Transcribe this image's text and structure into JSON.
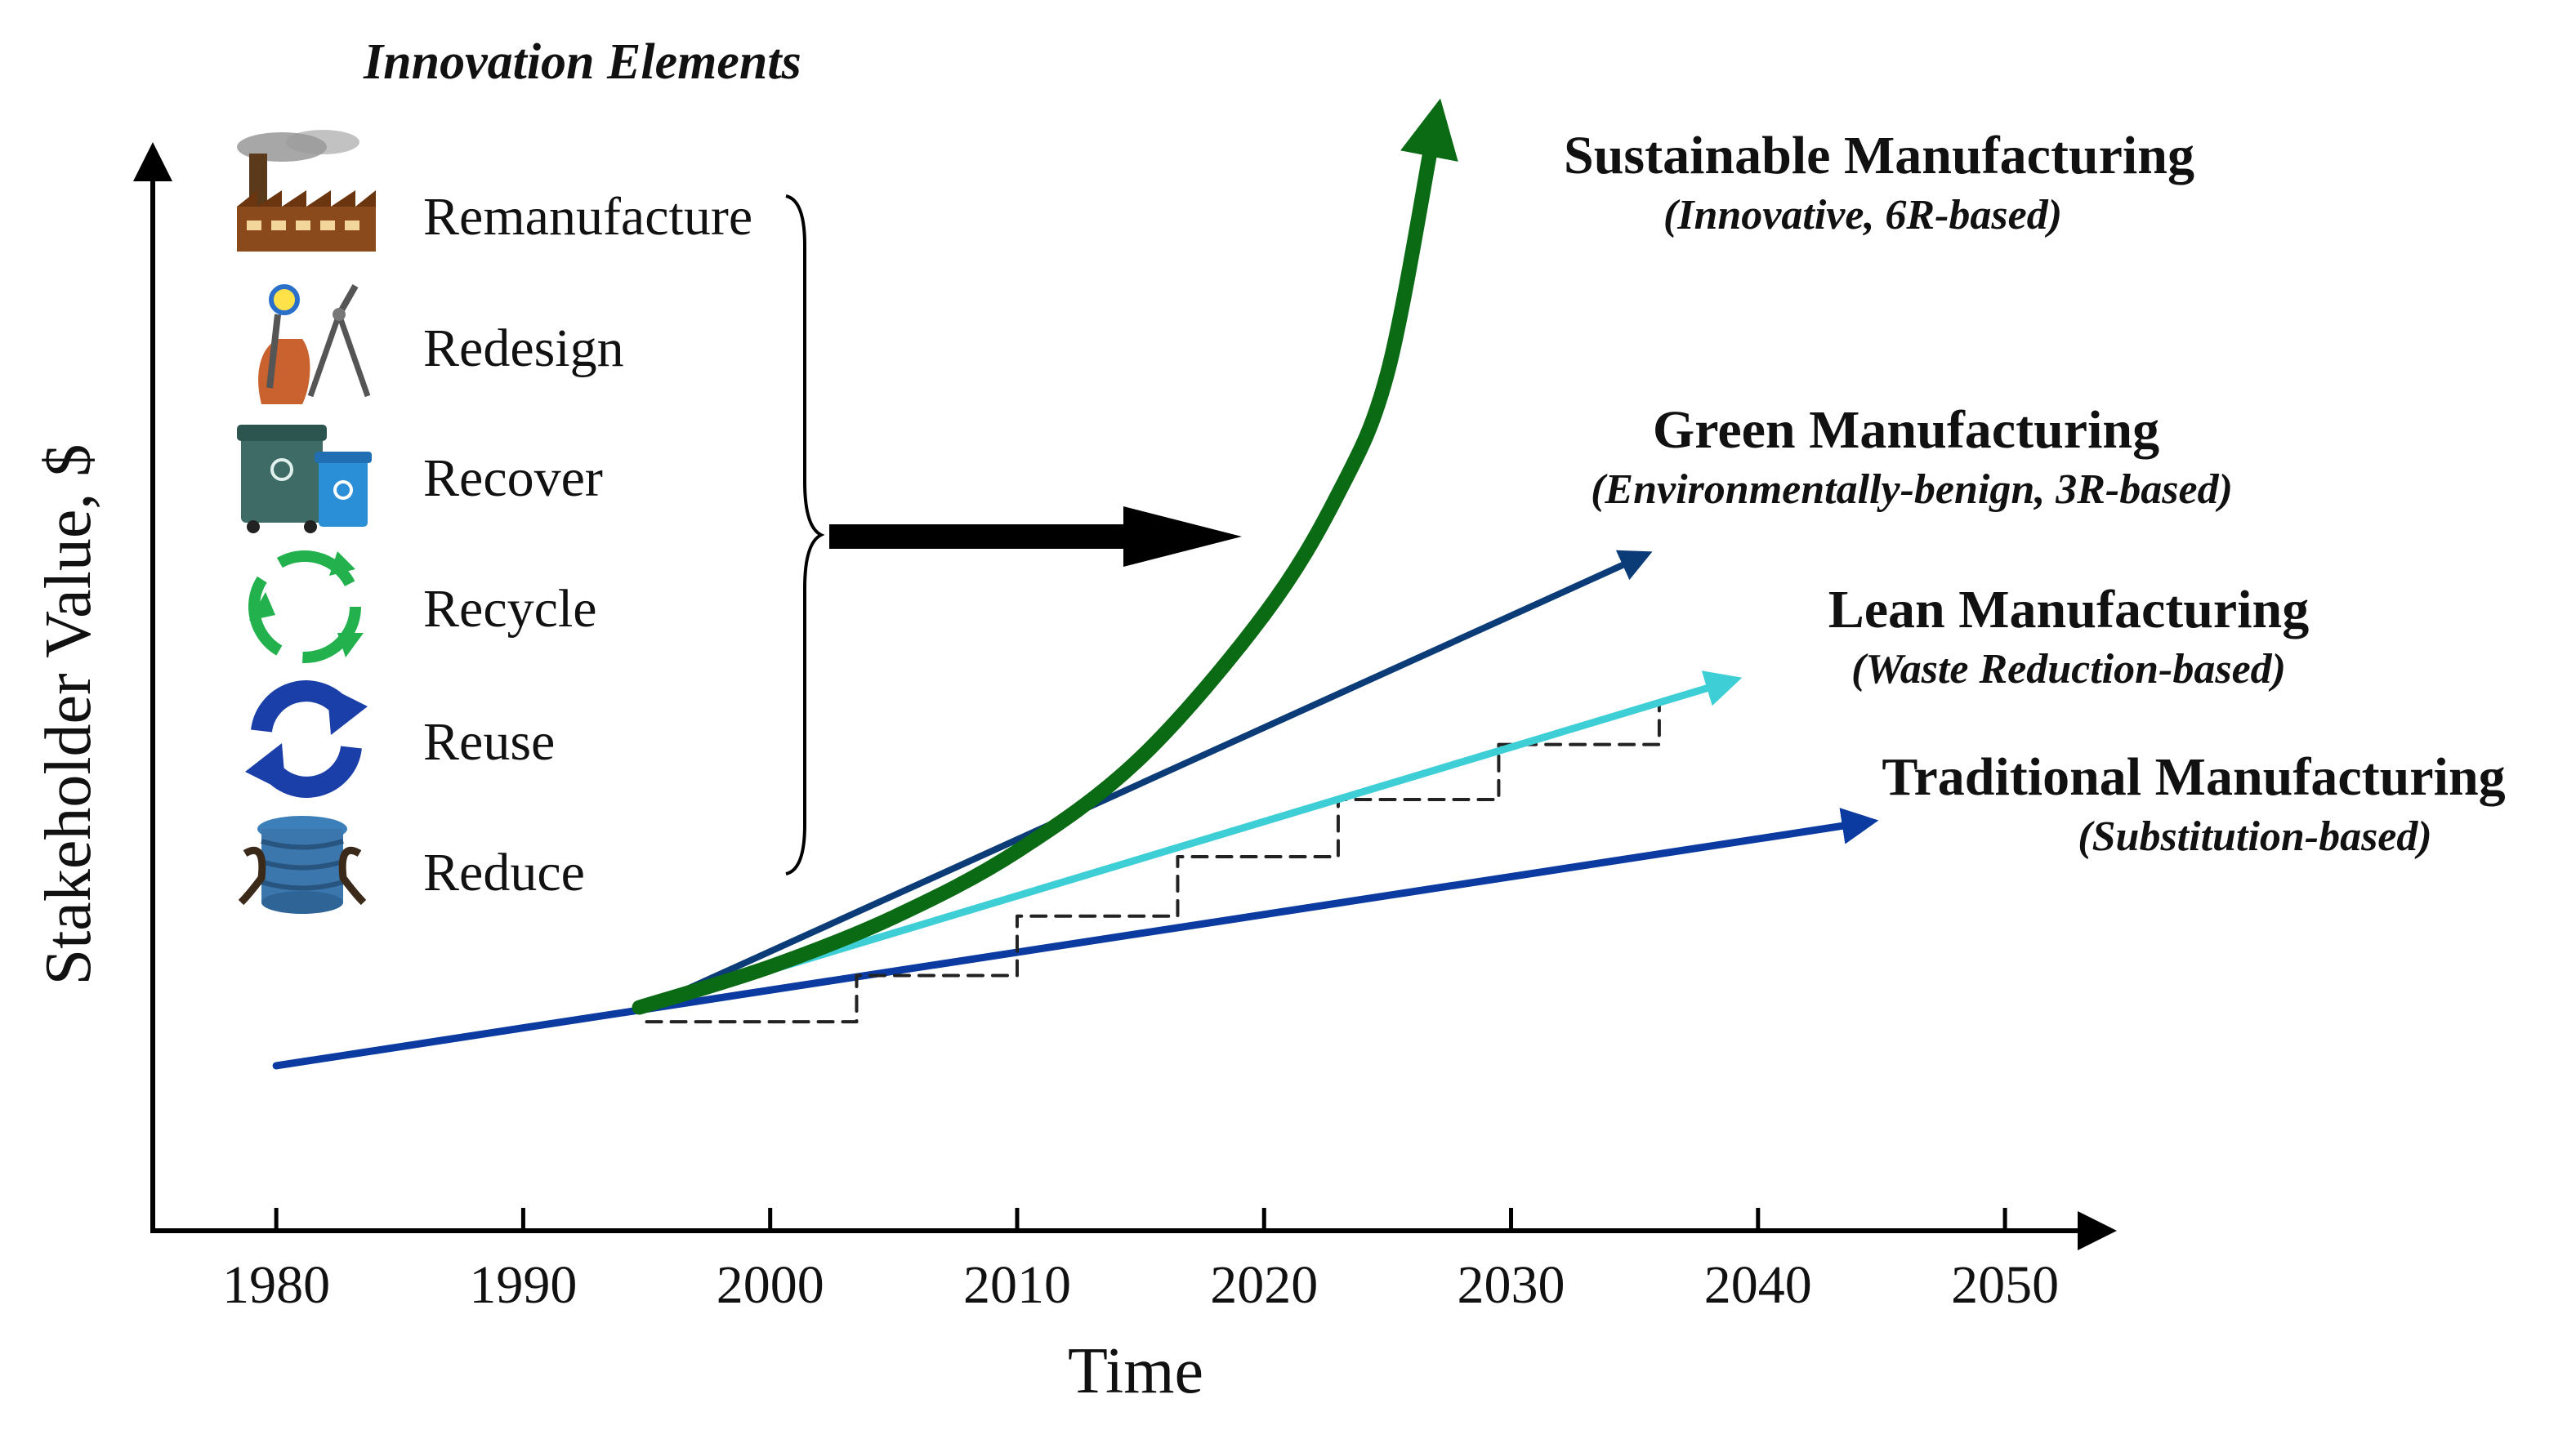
{
  "chart_data": {
    "type": "line",
    "title": "",
    "xlabel": "Time",
    "ylabel": "Stakeholder Value, $",
    "xlim": [
      1975,
      2054
    ],
    "ylim": [
      0,
      100
    ],
    "xticks": [
      1980,
      1990,
      2000,
      2010,
      2020,
      2030,
      2040,
      2050
    ],
    "series": [
      {
        "name": "Traditional Manufacturing",
        "subtitle": "(Substitution-based)",
        "color": "#0b3aa0",
        "x": [
          1980,
          2044
        ],
        "y": [
          15,
          37
        ]
      },
      {
        "name": "Lean Manufacturing",
        "subtitle": "(Waste Reduction-based)",
        "color": "#3ecfd6",
        "x": [
          1995,
          2038.5
        ],
        "y": [
          20.3,
          49.7
        ]
      },
      {
        "name": "Lean Manufacturing (stepwise)",
        "color": "#222222",
        "x": [
          1995,
          2003.5,
          2003.5,
          2010,
          2010,
          2016.5,
          2016.5,
          2023,
          2023,
          2029.5,
          2029.5,
          2036,
          2036
        ],
        "y": [
          19,
          19,
          23.2,
          23.2,
          28.6,
          28.6,
          34,
          34,
          39.2,
          39.2,
          44.2,
          44.2,
          48
        ]
      },
      {
        "name": "Green Manufacturing",
        "subtitle": "(Environmentally-benign, 3R-based)",
        "color": "#0c3c78",
        "x": [
          1995,
          2035
        ],
        "y": [
          20.3,
          61
        ]
      },
      {
        "name": "Sustainable Manufacturing",
        "subtitle": "(Innovative, 6R-based)",
        "color": "#0b6b14",
        "x": [
          1994.7,
          2000,
          2005,
          2010,
          2015,
          2020,
          2023,
          2025,
          2026.8
        ],
        "y": [
          20.3,
          24,
          28.5,
          34.5,
          43,
          56,
          67,
          78,
          99
        ]
      }
    ],
    "innovation_elements": {
      "title": "Innovation Elements",
      "items": [
        {
          "label": "Remanufacture",
          "icon": "factory-icon"
        },
        {
          "label": "Redesign",
          "icon": "drafting-tools-icon"
        },
        {
          "label": "Recover",
          "icon": "recovery-bins-icon"
        },
        {
          "label": "Recycle",
          "icon": "recycle-arrows-icon"
        },
        {
          "label": "Reuse",
          "icon": "reuse-arrows-icon"
        },
        {
          "label": "Reduce",
          "icon": "compressed-drum-icon"
        }
      ]
    }
  }
}
